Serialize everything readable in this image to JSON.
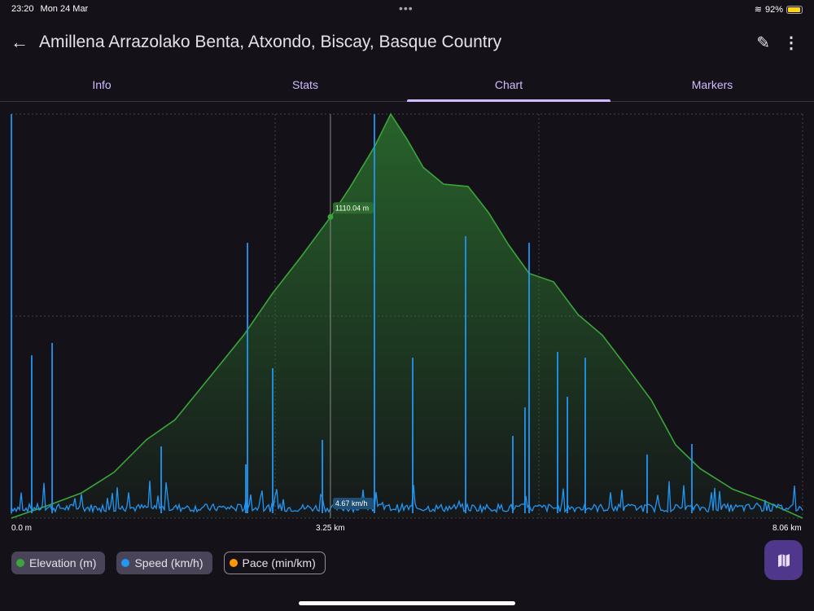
{
  "status": {
    "time": "23:20",
    "date": "Mon 24 Mar",
    "battery": "92%",
    "battery_level": 0.92
  },
  "header": {
    "title": "Amillena Arrazolako Benta, Atxondo, Biscay, Basque Country"
  },
  "tabs": [
    {
      "label": "Info"
    },
    {
      "label": "Stats"
    },
    {
      "label": "Chart",
      "active": true
    },
    {
      "label": "Markers"
    }
  ],
  "legend": [
    {
      "label": "Elevation (m)",
      "color": "#3aa53a",
      "enabled": true
    },
    {
      "label": "Speed (km/h)",
      "color": "#2196f3",
      "enabled": true
    },
    {
      "label": "Pace (min/km)",
      "color": "#ff9800",
      "enabled": false
    }
  ],
  "chart_data": {
    "type": "line",
    "x_unit": "km",
    "xlim": [
      0,
      8.06
    ],
    "x_tick_labels": [
      "0.0 m",
      "3.25 km",
      "8.06 km"
    ],
    "cursor": {
      "x": 3.25,
      "elevation_label": "1110.04 m",
      "speed_label": "4.67 km/h",
      "elevation": 1110.04,
      "speed": 4.67
    },
    "series": [
      {
        "name": "Elevation (m)",
        "color": "#3aa53a",
        "ylim": [
          715,
          1245
        ],
        "x": [
          0,
          0.381,
          0.713,
          1.045,
          1.377,
          1.667,
          2.04,
          2.372,
          2.662,
          2.952,
          3.251,
          3.45,
          3.698,
          3.864,
          4.03,
          4.196,
          4.403,
          4.652,
          4.859,
          5.067,
          5.274,
          5.523,
          5.772,
          6.02,
          6.269,
          6.518,
          6.767,
          7.016,
          7.347,
          7.679,
          8.06
        ],
        "y": [
          715,
          732,
          748,
          775,
          818,
          844,
          903,
          956,
          1010,
          1058,
          1110,
          1149,
          1202,
          1245,
          1212,
          1175,
          1153,
          1150,
          1116,
          1073,
          1036,
          1025,
          982,
          955,
          913,
          870,
          811,
          780,
          753,
          737,
          715
        ]
      },
      {
        "name": "Speed (km/h)",
        "color": "#2196f3",
        "ylim": [
          0,
          200
        ],
        "baseline": 4.67,
        "x": [
          0,
          0.207,
          0.415,
          1.526,
          2.388,
          2.405,
          2.662,
          3.168,
          3.698,
          4.088,
          4.627,
          5.108,
          5.232,
          5.274,
          5.564,
          5.664,
          5.846,
          6.476,
          6.932
        ],
        "y": [
          200,
          80.6,
          86.7,
          35.5,
          26.6,
          136.3,
          74.2,
          38.7,
          200,
          79.4,
          139.5,
          40.7,
          54.8,
          136.3,
          82.3,
          60.1,
          79.4,
          31.5,
          36.7
        ]
      }
    ]
  }
}
